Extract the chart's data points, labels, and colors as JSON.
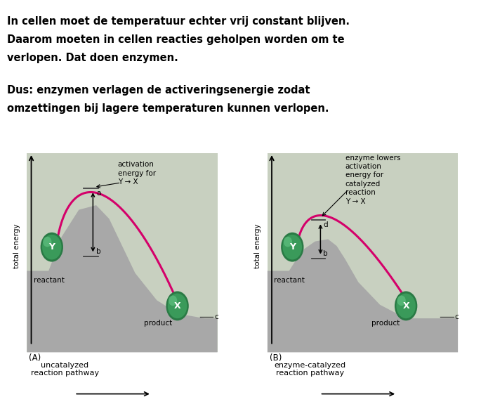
{
  "text_line1": "In cellen moet de temperatuur echter vrij constant blijven.",
  "text_line2": "Daarom moeten in cellen reacties geholpen worden om te",
  "text_line3": "verlopen. Dat doen enzymen.",
  "text_line4": "Dus: enzymen verlagen de activeringsenergie zodat",
  "text_line5": "omzettingen bij lagere temperaturen kunnen verlopen.",
  "bg_color": "#ffffff",
  "mountain_light": "#c8d0c0",
  "mountain_dark": "#a8a8a8",
  "curve_color": "#d4006a",
  "ball_dark": "#2a7a45",
  "ball_mid": "#3a9a5a",
  "ball_light": "#60c080",
  "text_color": "#000000",
  "panel_A_label": "(A)",
  "panel_B_label": "(B)",
  "xlabel_A": "uncatalyzed\nreaction pathway",
  "xlabel_B": "enzyme-catalyzed\nreaction pathway",
  "ylabel": "total energy",
  "reactant_label": "reactant",
  "product_label": "product",
  "Y_label": "Y",
  "X_label": "X",
  "ann_A": "activation\nenergy for\nY → X",
  "ann_B": "enzyme lowers\nactivation\nenergy for\ncatalyzed\nreaction\nY → X"
}
